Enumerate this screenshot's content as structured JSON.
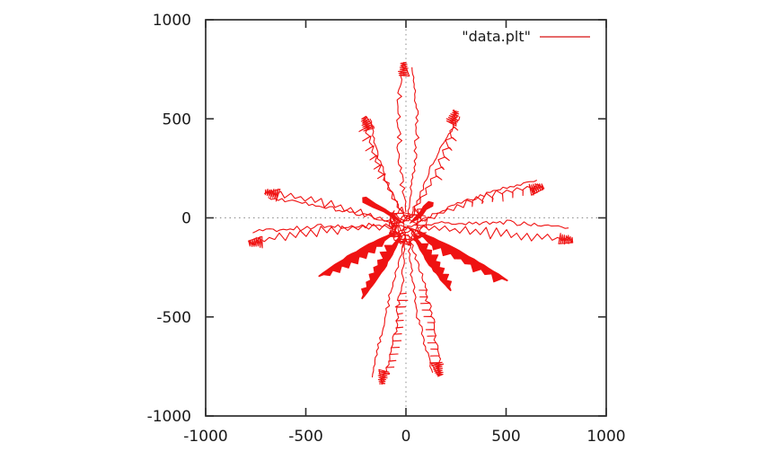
{
  "chart_data": {
    "type": "line",
    "title": "",
    "legend": {
      "label": "\"data.plt\"",
      "position": "top-right-inside"
    },
    "xlabel": "",
    "ylabel": "",
    "xlim": [
      -1000,
      1000
    ],
    "ylim": [
      -1000,
      1000
    ],
    "x_ticks": [
      -1000,
      -500,
      0,
      500,
      1000
    ],
    "y_ticks": [
      -1000,
      -500,
      0,
      500,
      1000
    ],
    "x_tick_labels": [
      "-1000",
      "-500",
      "0",
      "500",
      "1000"
    ],
    "y_tick_labels": [
      "-1000",
      "-500",
      "0",
      "500",
      "1000"
    ],
    "grid": "zero-axes-dotted",
    "series_name": "data.plt",
    "pattern": "starburst of jagged random-walk arms radiating from the origin with a dense central tangle",
    "center": {
      "x": 5,
      "y": -40,
      "scribble_radius": 85
    },
    "arms": [
      {
        "tip_x": -12,
        "tip_y": 785,
        "kind": "wiggle",
        "zigzag": false,
        "amp": [
          10,
          16,
          12
        ],
        "dense_tip": true,
        "double": true,
        "spurs": 0,
        "r0": 70
      },
      {
        "tip_x": 251,
        "tip_y": 540,
        "kind": "wiggle",
        "zigzag": true,
        "amp": [
          8,
          14,
          12
        ],
        "dense_tip": true,
        "double": true,
        "spurs": -1,
        "r0": 80
      },
      {
        "tip_x": -211,
        "tip_y": 508,
        "kind": "wiggle",
        "zigzag": true,
        "amp": [
          8,
          14,
          12
        ],
        "dense_tip": true,
        "double": true,
        "spurs": 1,
        "r0": 80
      },
      {
        "tip_x": 686,
        "tip_y": 160,
        "kind": "wiggle",
        "zigzag": true,
        "amp": [
          9,
          18,
          12
        ],
        "dense_tip": true,
        "double": true,
        "spurs": -1,
        "r0": 90
      },
      {
        "tip_x": -704,
        "tip_y": 131,
        "kind": "wiggle",
        "zigzag": true,
        "amp": [
          9,
          18,
          12
        ],
        "dense_tip": true,
        "double": true,
        "spurs": 0,
        "r0": 90
      },
      {
        "tip_x": -785,
        "tip_y": -128,
        "kind": "wiggle",
        "zigzag": true,
        "amp": [
          10,
          24,
          12
        ],
        "dense_tip": true,
        "double": true,
        "spurs": 0,
        "r0": 60
      },
      {
        "tip_x": 834,
        "tip_y": -112,
        "kind": "wiggle",
        "zigzag": true,
        "amp": [
          10,
          24,
          12
        ],
        "dense_tip": true,
        "double": true,
        "spurs": 0,
        "r0": 60
      },
      {
        "tip_x": -435,
        "tip_y": -295,
        "kind": "feather",
        "teeth_side": 1,
        "r0": 60
      },
      {
        "tip_x": -220,
        "tip_y": -408,
        "kind": "feather",
        "teeth_side": -1,
        "r0": 60
      },
      {
        "tip_x": 224,
        "tip_y": -367,
        "kind": "feather",
        "teeth_side": 1,
        "r0": 60
      },
      {
        "tip_x": 507,
        "tip_y": -317,
        "kind": "feather",
        "teeth_side": -1,
        "r0": 60
      },
      {
        "tip_x": -121,
        "tip_y": -839,
        "kind": "wiggle",
        "zigzag": false,
        "amp": [
          9,
          15,
          11
        ],
        "dense_tip": true,
        "double": true,
        "spurs": 1,
        "r0": 70
      },
      {
        "tip_x": 170,
        "tip_y": -798,
        "kind": "wiggle",
        "zigzag": false,
        "amp": [
          9,
          15,
          11
        ],
        "dense_tip": true,
        "double": true,
        "spurs": -1,
        "r0": 70
      },
      {
        "tip_x": -205,
        "tip_y": 95,
        "kind": "wedge"
      },
      {
        "tip_x": 126,
        "tip_y": 68,
        "kind": "wedge"
      },
      {
        "tip_x": 150,
        "tip_y": -140,
        "kind": "wedge"
      }
    ],
    "colors": {
      "series": "#ef1212",
      "legend_sample": "#e25555",
      "frame": "#2e2e2e",
      "zero_axis": "#8a8a8a",
      "text": "#1a1a1a",
      "background": "#ffffff"
    }
  }
}
